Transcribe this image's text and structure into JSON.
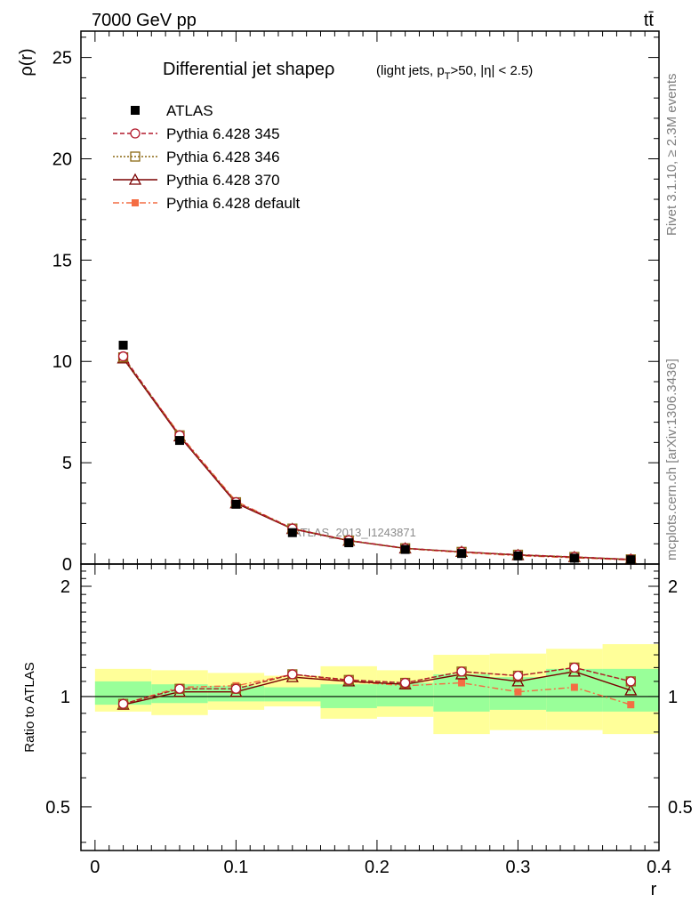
{
  "header": {
    "process_left": "7000 GeV pp",
    "process_right": "tt̄"
  },
  "side_text": {
    "rivet": "Rivet 3.1.10, ≥ 2.3M events",
    "mcplots": "mcplots.cern.ch [arXiv:1306.3436]"
  },
  "watermark": "ATLAS_2013_I1243871",
  "colors": {
    "atlas": "#000000",
    "p345": "#b2182b",
    "p346": "#8b6914",
    "p370": "#7a0000",
    "pdefault": "#f46d43",
    "band_inner": "#99ff99",
    "band_outer": "#ffff99"
  },
  "chart_data": [
    {
      "type": "scatter",
      "title": "Differential jet shapeρ",
      "title_note": "(light jets, p_T>50, |η| < 2.5)",
      "ylabel": "ρ(r)",
      "xlabel": "",
      "xlim": [
        -0.01,
        0.4
      ],
      "ylim": [
        0,
        26.3
      ],
      "yticks": [
        0,
        5,
        10,
        15,
        20,
        25
      ],
      "legend_position": "top-left",
      "x": [
        0.02,
        0.06,
        0.1,
        0.14,
        0.18,
        0.22,
        0.26,
        0.3,
        0.34,
        0.38
      ],
      "series": [
        {
          "name": "ATLAS",
          "marker": "square-filled",
          "values": [
            10.8,
            6.1,
            2.95,
            1.55,
            1.05,
            0.72,
            0.52,
            0.4,
            0.29,
            0.21
          ]
        },
        {
          "name": "Pythia 6.428 345",
          "marker": "circle-open",
          "line": "dashed",
          "values": [
            10.25,
            6.35,
            3.05,
            1.75,
            1.17,
            0.78,
            0.6,
            0.46,
            0.35,
            0.23
          ]
        },
        {
          "name": "Pythia 6.428 346",
          "marker": "square-open",
          "line": "dotted",
          "values": [
            10.2,
            6.35,
            3.05,
            1.75,
            1.16,
            0.78,
            0.6,
            0.46,
            0.35,
            0.23
          ]
        },
        {
          "name": "Pythia 6.428 370",
          "marker": "triangle-open",
          "line": "solid",
          "values": [
            10.15,
            6.3,
            3.0,
            1.73,
            1.15,
            0.77,
            0.6,
            0.44,
            0.34,
            0.22
          ]
        },
        {
          "name": "Pythia 6.428 default",
          "marker": "square-filled-small",
          "line": "dashdot",
          "values": [
            10.2,
            6.4,
            3.1,
            1.76,
            1.16,
            0.76,
            0.57,
            0.41,
            0.31,
            0.2
          ]
        }
      ]
    },
    {
      "type": "line",
      "title": "",
      "ylabel": "Ratio to ATLAS",
      "xlabel": "r",
      "xlim": [
        -0.01,
        0.4
      ],
      "ylim": [
        0.38,
        2.3
      ],
      "yticks": [
        0.5,
        1,
        2
      ],
      "xticks": [
        0,
        0.1,
        0.2,
        0.3,
        0.4
      ],
      "bins": [
        [
          0.0,
          0.04
        ],
        [
          0.04,
          0.08
        ],
        [
          0.08,
          0.12
        ],
        [
          0.12,
          0.16
        ],
        [
          0.16,
          0.2
        ],
        [
          0.2,
          0.24
        ],
        [
          0.24,
          0.28
        ],
        [
          0.28,
          0.32
        ],
        [
          0.32,
          0.36
        ],
        [
          0.36,
          0.4
        ]
      ],
      "band_inner": [
        [
          0.95,
          1.1
        ],
        [
          0.96,
          1.08
        ],
        [
          0.97,
          1.07
        ],
        [
          0.97,
          1.06
        ],
        [
          0.93,
          1.08
        ],
        [
          0.94,
          1.09
        ],
        [
          0.91,
          1.15
        ],
        [
          0.92,
          1.13
        ],
        [
          0.91,
          1.19
        ],
        [
          0.91,
          1.19
        ]
      ],
      "band_outer": [
        [
          0.91,
          1.19
        ],
        [
          0.89,
          1.18
        ],
        [
          0.92,
          1.16
        ],
        [
          0.94,
          1.14
        ],
        [
          0.87,
          1.21
        ],
        [
          0.88,
          1.18
        ],
        [
          0.79,
          1.3
        ],
        [
          0.81,
          1.31
        ],
        [
          0.81,
          1.35
        ],
        [
          0.79,
          1.39
        ]
      ],
      "x": [
        0.02,
        0.06,
        0.1,
        0.14,
        0.18,
        0.22,
        0.26,
        0.3,
        0.34,
        0.38
      ],
      "series": [
        {
          "name": "Pythia 6.428 345",
          "values": [
            0.955,
            1.05,
            1.05,
            1.15,
            1.11,
            1.09,
            1.17,
            1.14,
            1.2,
            1.1
          ]
        },
        {
          "name": "Pythia 6.428 346",
          "values": [
            0.955,
            1.05,
            1.05,
            1.15,
            1.11,
            1.09,
            1.17,
            1.14,
            1.2,
            1.1
          ]
        },
        {
          "name": "Pythia 6.428 370",
          "values": [
            0.95,
            1.03,
            1.03,
            1.13,
            1.1,
            1.08,
            1.15,
            1.1,
            1.17,
            1.04
          ]
        },
        {
          "name": "Pythia 6.428 default",
          "values": [
            0.955,
            1.06,
            1.07,
            1.15,
            1.1,
            1.07,
            1.09,
            1.03,
            1.06,
            0.95
          ]
        }
      ]
    }
  ]
}
